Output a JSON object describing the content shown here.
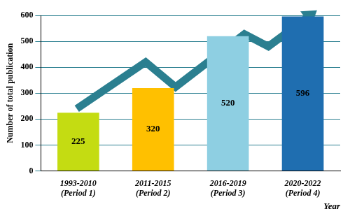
{
  "chart_data": {
    "type": "bar",
    "categories": [
      "1993-2010 (Period 1)",
      "2011-2015 (Period 2)",
      "2016-2019 (Period 3)",
      "2020-2022 (Period 4)"
    ],
    "values": [
      225,
      320,
      520,
      596
    ],
    "colors": [
      "#c4dc12",
      "#ffc000",
      "#8ecfe2",
      "#1f6eb0"
    ],
    "x_label": "Year",
    "y_label": "Number of total publication",
    "ylim": [
      0,
      600
    ],
    "yticks": [
      0,
      100,
      200,
      300,
      400,
      500,
      600
    ],
    "grid": true,
    "data_labels": true
  }
}
